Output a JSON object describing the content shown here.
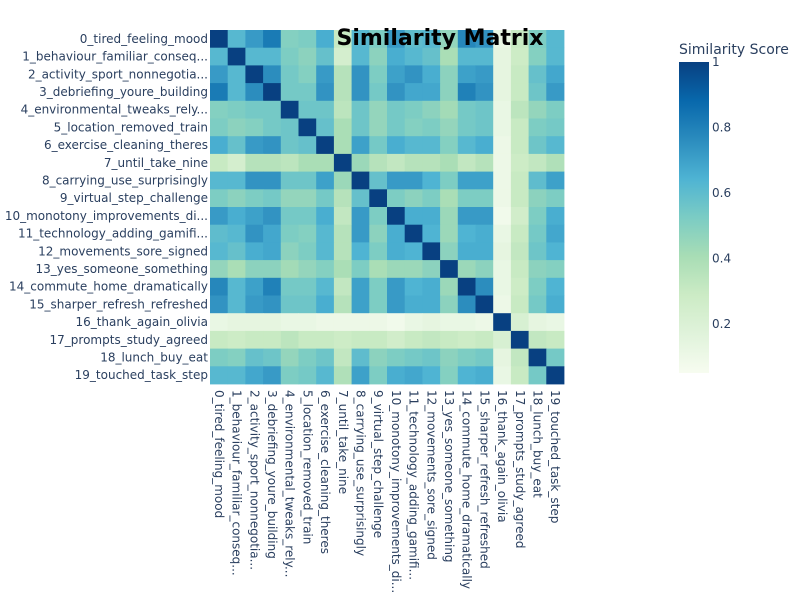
{
  "chart_data": {
    "type": "heatmap",
    "title": "Similarity Matrix",
    "colorbar_title": "Similarity Score",
    "colorscale": "GnBu",
    "zlim": [
      0.05,
      1
    ],
    "colorbar_ticks": [
      1,
      0.8,
      0.6,
      0.4,
      0.2
    ],
    "row_labels": [
      "0_tired_feeling_mood",
      "1_behaviour_familiar_conseq...",
      "2_activity_sport_nonnegotia...",
      "3_debriefing_youre_building",
      "4_environmental_tweaks_rely...",
      "5_location_removed_train",
      "6_exercise_cleaning_theres",
      "7_until_take_nine",
      "8_carrying_use_surprisingly",
      "9_virtual_step_challenge",
      "10_monotony_improvements_di...",
      "11_technology_adding_gamifi...",
      "12_movements_sore_signed",
      "13_yes_someone_something",
      "14_commute_home_dramatically",
      "15_sharper_refresh_refreshed",
      "16_thank_again_olivia",
      "17_prompts_study_agreed",
      "18_lunch_buy_eat",
      "19_touched_task_step"
    ],
    "col_labels": [
      "0_tired_feeling_mood",
      "1_behaviour_familiar_conseq...",
      "2_activity_sport_nonnegotia...",
      "3_debriefing_youre_building",
      "4_environmental_tweaks_rely...",
      "5_location_removed_train",
      "6_exercise_cleaning_theres",
      "7_until_take_nine",
      "8_carrying_use_surprisingly",
      "9_virtual_step_challenge",
      "10_monotony_improvements_di...",
      "11_technology_adding_gamifi...",
      "12_movements_sore_signed",
      "13_yes_someone_something",
      "14_commute_home_dramatically",
      "15_sharper_refresh_refreshed",
      "16_thank_again_olivia",
      "17_prompts_study_agreed",
      "18_lunch_buy_eat",
      "19_touched_task_step"
    ],
    "z": [
      [
        1.0,
        0.62,
        0.72,
        0.82,
        0.5,
        0.52,
        0.66,
        0.3,
        0.62,
        0.52,
        0.72,
        0.6,
        0.62,
        0.46,
        0.78,
        0.74,
        0.12,
        0.3,
        0.52,
        0.62
      ],
      [
        0.62,
        1.0,
        0.62,
        0.62,
        0.52,
        0.48,
        0.58,
        0.24,
        0.62,
        0.48,
        0.66,
        0.62,
        0.58,
        0.4,
        0.62,
        0.62,
        0.14,
        0.28,
        0.5,
        0.62
      ],
      [
        0.72,
        0.62,
        1.0,
        0.76,
        0.54,
        0.5,
        0.72,
        0.36,
        0.74,
        0.52,
        0.7,
        0.74,
        0.66,
        0.48,
        0.7,
        0.72,
        0.14,
        0.3,
        0.58,
        0.68
      ],
      [
        0.82,
        0.62,
        0.76,
        1.0,
        0.54,
        0.54,
        0.74,
        0.36,
        0.74,
        0.54,
        0.74,
        0.68,
        0.68,
        0.48,
        0.8,
        0.74,
        0.14,
        0.3,
        0.56,
        0.72
      ],
      [
        0.5,
        0.52,
        0.54,
        0.54,
        1.0,
        0.56,
        0.56,
        0.34,
        0.56,
        0.46,
        0.54,
        0.52,
        0.48,
        0.42,
        0.54,
        0.56,
        0.12,
        0.34,
        0.46,
        0.52
      ],
      [
        0.52,
        0.48,
        0.5,
        0.54,
        0.56,
        1.0,
        0.58,
        0.4,
        0.56,
        0.46,
        0.54,
        0.5,
        0.52,
        0.46,
        0.54,
        0.56,
        0.12,
        0.3,
        0.52,
        0.54
      ],
      [
        0.66,
        0.58,
        0.72,
        0.74,
        0.56,
        0.58,
        1.0,
        0.4,
        0.7,
        0.54,
        0.66,
        0.62,
        0.62,
        0.5,
        0.62,
        0.66,
        0.1,
        0.3,
        0.56,
        0.62
      ],
      [
        0.3,
        0.24,
        0.36,
        0.36,
        0.34,
        0.4,
        0.4,
        1.0,
        0.44,
        0.36,
        0.32,
        0.36,
        0.36,
        0.4,
        0.32,
        0.36,
        0.1,
        0.28,
        0.32,
        0.38
      ],
      [
        0.62,
        0.62,
        0.74,
        0.74,
        0.56,
        0.56,
        0.7,
        0.44,
        1.0,
        0.58,
        0.72,
        0.72,
        0.64,
        0.52,
        0.7,
        0.7,
        0.1,
        0.3,
        0.6,
        0.7
      ],
      [
        0.52,
        0.48,
        0.52,
        0.54,
        0.46,
        0.46,
        0.54,
        0.36,
        0.58,
        1.0,
        0.52,
        0.48,
        0.52,
        0.4,
        0.52,
        0.52,
        0.1,
        0.3,
        0.48,
        0.52
      ],
      [
        0.72,
        0.66,
        0.7,
        0.74,
        0.54,
        0.54,
        0.66,
        0.32,
        0.72,
        0.52,
        1.0,
        0.66,
        0.66,
        0.44,
        0.72,
        0.72,
        0.08,
        0.26,
        0.52,
        0.66
      ],
      [
        0.6,
        0.62,
        0.74,
        0.68,
        0.52,
        0.5,
        0.62,
        0.36,
        0.72,
        0.48,
        0.66,
        1.0,
        0.64,
        0.44,
        0.64,
        0.66,
        0.12,
        0.3,
        0.54,
        0.68
      ],
      [
        0.62,
        0.58,
        0.66,
        0.68,
        0.48,
        0.52,
        0.62,
        0.36,
        0.64,
        0.52,
        0.66,
        0.64,
        1.0,
        0.48,
        0.66,
        0.66,
        0.14,
        0.32,
        0.56,
        0.64
      ],
      [
        0.46,
        0.4,
        0.48,
        0.48,
        0.42,
        0.46,
        0.5,
        0.4,
        0.52,
        0.4,
        0.44,
        0.44,
        0.48,
        1.0,
        0.44,
        0.48,
        0.12,
        0.3,
        0.48,
        0.5
      ],
      [
        0.78,
        0.62,
        0.7,
        0.8,
        0.54,
        0.54,
        0.62,
        0.32,
        0.7,
        0.52,
        0.72,
        0.64,
        0.66,
        0.44,
        1.0,
        0.76,
        0.12,
        0.28,
        0.52,
        0.64
      ],
      [
        0.74,
        0.62,
        0.72,
        0.74,
        0.56,
        0.56,
        0.66,
        0.36,
        0.7,
        0.52,
        0.72,
        0.66,
        0.66,
        0.48,
        0.76,
        1.0,
        0.1,
        0.3,
        0.54,
        0.66
      ],
      [
        0.12,
        0.14,
        0.14,
        0.14,
        0.12,
        0.12,
        0.1,
        0.1,
        0.1,
        0.1,
        0.08,
        0.12,
        0.14,
        0.12,
        0.12,
        0.1,
        1.0,
        0.22,
        0.14,
        0.12
      ],
      [
        0.3,
        0.28,
        0.3,
        0.3,
        0.34,
        0.3,
        0.3,
        0.28,
        0.3,
        0.3,
        0.26,
        0.3,
        0.32,
        0.3,
        0.28,
        0.3,
        0.22,
        1.0,
        0.32,
        0.3
      ],
      [
        0.52,
        0.5,
        0.58,
        0.56,
        0.46,
        0.52,
        0.56,
        0.32,
        0.6,
        0.48,
        0.52,
        0.54,
        0.56,
        0.48,
        0.52,
        0.54,
        0.14,
        0.32,
        1.0,
        0.54
      ],
      [
        0.62,
        0.62,
        0.68,
        0.72,
        0.52,
        0.54,
        0.62,
        0.38,
        0.7,
        0.52,
        0.66,
        0.68,
        0.64,
        0.5,
        0.64,
        0.66,
        0.12,
        0.3,
        0.54,
        1.0
      ]
    ]
  }
}
